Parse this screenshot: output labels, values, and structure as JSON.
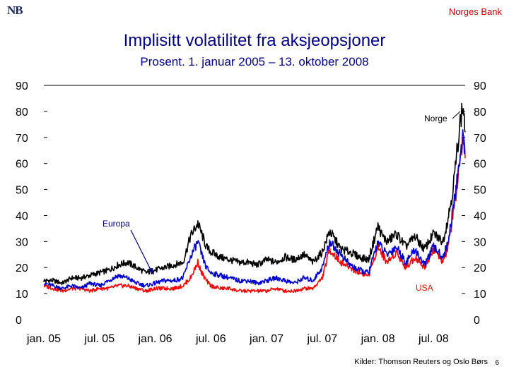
{
  "header": {
    "logo_text": "NB",
    "org_name": "Norges Bank"
  },
  "footer": {
    "source": "Kilder: Thomson Reuters og Oslo Børs",
    "page_number": "6"
  },
  "chart_data": {
    "type": "line",
    "title": "Implisitt volatilitet fra aksjeopsjoner",
    "subtitle": "Prosent. 1. januar 2005 – 13. oktober 2008",
    "xlabel": "",
    "ylabel": "",
    "ylim": [
      0,
      90
    ],
    "y_ticks": [
      0,
      10,
      20,
      30,
      40,
      50,
      60,
      70,
      80,
      90
    ],
    "x_tick_labels": [
      "jan. 05",
      "jul. 05",
      "jan. 06",
      "jul. 06",
      "jan. 07",
      "jul. 07",
      "jan. 08",
      "jul. 08"
    ],
    "x_range_months": [
      0,
      45.4
    ],
    "annotations": [
      {
        "text": "Norge",
        "series": "Norge",
        "color": "#000000"
      },
      {
        "text": "Europa",
        "series": "Europa",
        "color": "#000080"
      },
      {
        "text": "USA",
        "series": "USA",
        "color": "#ff0000"
      }
    ],
    "series": [
      {
        "name": "Norge",
        "color": "#000000",
        "x": [
          0,
          1,
          2,
          3,
          4,
          5,
          6,
          7,
          8,
          9,
          10,
          11,
          12,
          13,
          14,
          15,
          15.8,
          16.6,
          17,
          17.5,
          18,
          19,
          20,
          21,
          22,
          23,
          24,
          25,
          26,
          27,
          28,
          29,
          30,
          30.8,
          31.5,
          32,
          33,
          34,
          35,
          36,
          36.5,
          37,
          38,
          39,
          40,
          41,
          42,
          43,
          43.5,
          44,
          44.4,
          44.8,
          45.2,
          45.4
        ],
        "y": [
          15,
          15,
          14,
          16,
          16,
          17,
          18,
          19,
          21,
          22,
          20,
          18,
          19,
          20,
          21,
          22,
          32,
          37,
          33,
          28,
          26,
          24,
          23,
          22,
          22,
          21,
          23,
          22,
          24,
          23,
          25,
          22,
          26,
          34,
          30,
          27,
          26,
          24,
          23,
          36,
          32,
          30,
          33,
          28,
          32,
          27,
          33,
          30,
          38,
          48,
          60,
          75,
          82,
          72
        ]
      },
      {
        "name": "Europa",
        "color": "#0000cc",
        "x": [
          0,
          1,
          2,
          3,
          4,
          5,
          6,
          7,
          8,
          9,
          10,
          11,
          12,
          13,
          14,
          15,
          15.8,
          16.6,
          17,
          17.5,
          18,
          19,
          20,
          21,
          22,
          23,
          24,
          25,
          26,
          27,
          28,
          29,
          30,
          30.8,
          31.5,
          32,
          33,
          34,
          35,
          36,
          36.5,
          37,
          38,
          39,
          40,
          41,
          42,
          43,
          43.5,
          44,
          44.4,
          44.8,
          45.2,
          45.4
        ],
        "y": [
          14,
          13,
          12,
          13,
          12,
          14,
          13,
          15,
          17,
          16,
          14,
          13,
          14,
          15,
          15,
          16,
          24,
          30,
          25,
          20,
          18,
          17,
          16,
          15,
          15,
          14,
          15,
          16,
          15,
          14,
          16,
          15,
          20,
          30,
          27,
          25,
          21,
          19,
          18,
          30,
          27,
          25,
          28,
          22,
          27,
          21,
          28,
          24,
          29,
          40,
          50,
          62,
          70,
          65
        ]
      },
      {
        "name": "USA",
        "color": "#ff0000",
        "x": [
          0,
          1,
          2,
          3,
          4,
          5,
          6,
          7,
          8,
          9,
          10,
          11,
          12,
          13,
          14,
          15,
          15.8,
          16.6,
          17,
          17.5,
          18,
          19,
          20,
          21,
          22,
          23,
          24,
          25,
          26,
          27,
          28,
          29,
          30,
          30.8,
          31.5,
          32,
          33,
          34,
          35,
          36,
          36.5,
          37,
          38,
          39,
          40,
          41,
          42,
          43,
          43.5,
          44,
          44.4,
          44.8,
          45.2,
          45.4
        ],
        "y": [
          13,
          12,
          11,
          12,
          12,
          11,
          12,
          12,
          13,
          13,
          12,
          11,
          12,
          12,
          12,
          13,
          16,
          22,
          18,
          15,
          13,
          12,
          12,
          11,
          11,
          11,
          11,
          12,
          11,
          11,
          12,
          12,
          16,
          27,
          24,
          22,
          20,
          18,
          17,
          28,
          25,
          22,
          26,
          20,
          24,
          20,
          27,
          22,
          27,
          38,
          48,
          58,
          68,
          62
        ]
      }
    ]
  }
}
